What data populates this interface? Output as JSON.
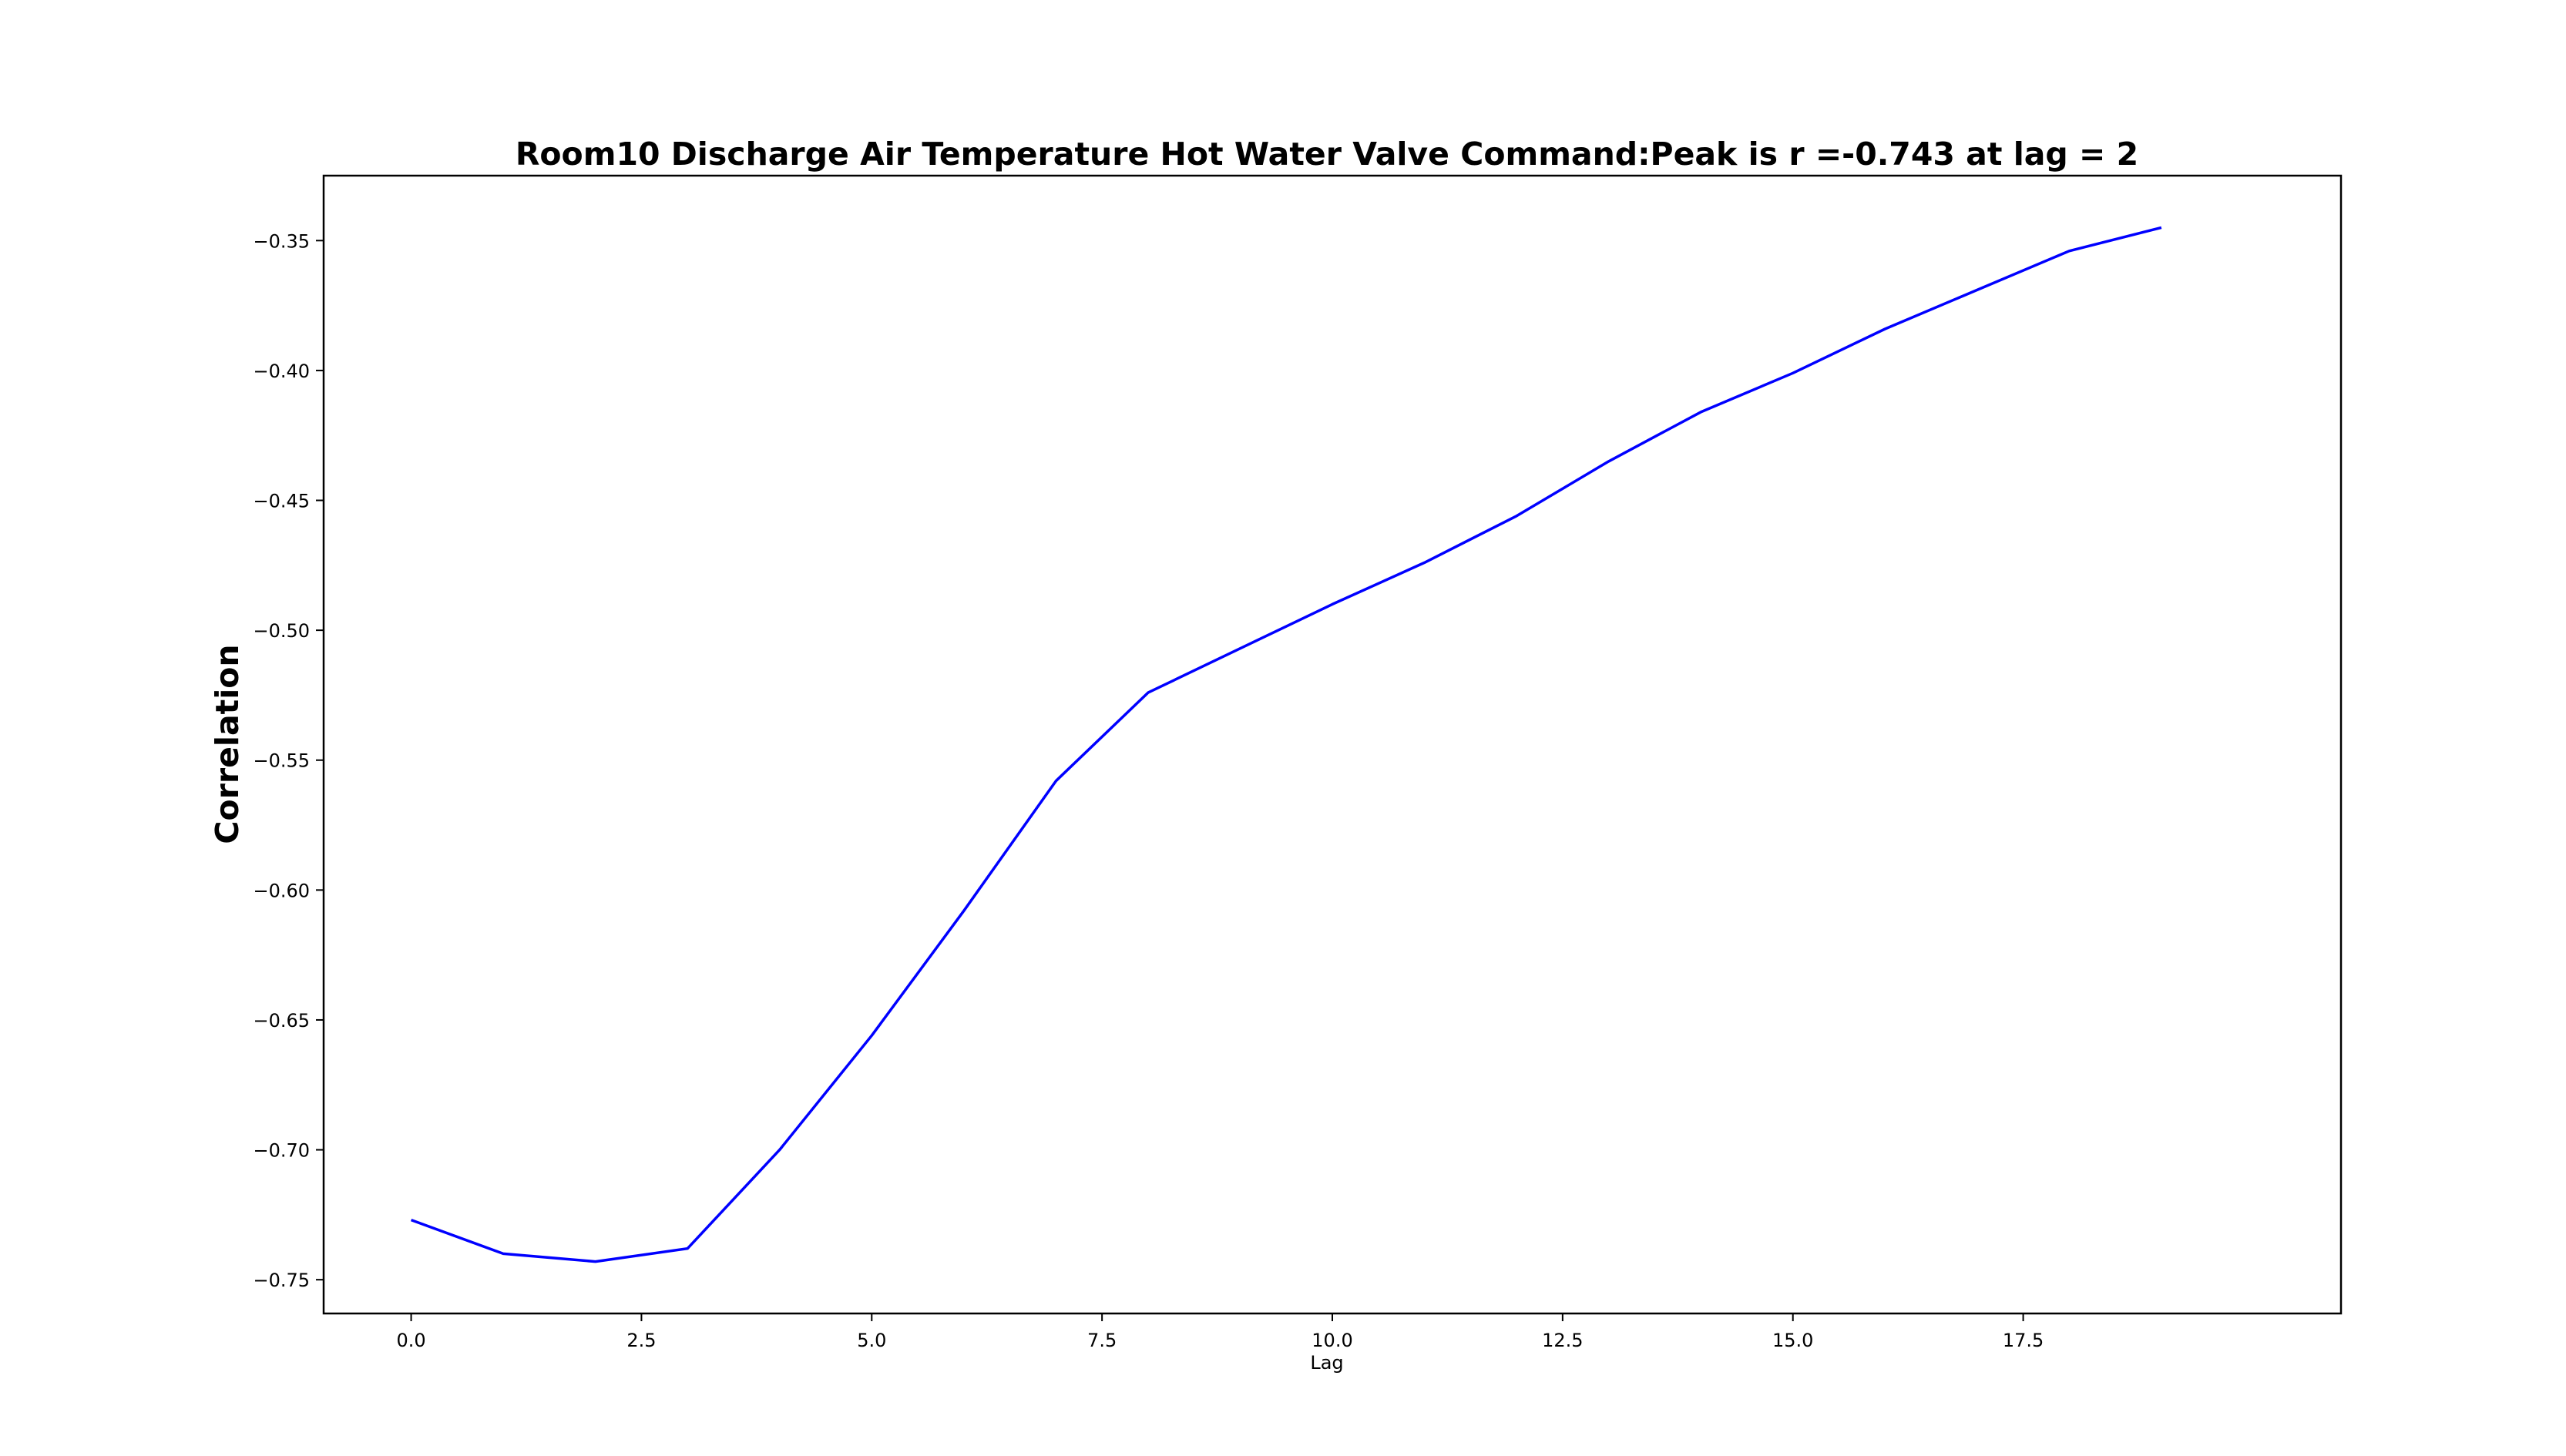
{
  "chart_data": {
    "type": "line",
    "title": "Room10 Discharge Air Temperature Hot Water Valve Command:Peak is r =-0.743 at lag = 2",
    "xlabel": "Lag",
    "ylabel": "Correlation",
    "xlim": [
      -0.95,
      20.95
    ],
    "ylim": [
      -0.763,
      -0.325
    ],
    "xticks": [
      0.0,
      2.5,
      5.0,
      7.5,
      10.0,
      12.5,
      15.0,
      17.5
    ],
    "xtick_labels": [
      "0.0",
      "2.5",
      "5.0",
      "7.5",
      "10.0",
      "12.5",
      "15.0",
      "17.5"
    ],
    "yticks": [
      -0.35,
      -0.4,
      -0.45,
      -0.5,
      -0.55,
      -0.6,
      -0.65,
      -0.7,
      -0.75
    ],
    "ytick_labels": [
      "−0.35",
      "−0.40",
      "−0.45",
      "−0.50",
      "−0.55",
      "−0.60",
      "−0.65",
      "−0.70",
      "−0.75"
    ],
    "grid": false,
    "series": [
      {
        "color": "#0000ff",
        "x": [
          0,
          1,
          2,
          3,
          4,
          5,
          6,
          7,
          8,
          9,
          10,
          11,
          12,
          13,
          14,
          15,
          16,
          17,
          18,
          19
        ],
        "y": [
          -0.727,
          -0.74,
          -0.743,
          -0.738,
          -0.7,
          -0.656,
          -0.608,
          -0.558,
          -0.524,
          -0.507,
          -0.49,
          -0.474,
          -0.456,
          -0.435,
          -0.416,
          -0.401,
          -0.384,
          -0.369,
          -0.354,
          -0.345
        ]
      }
    ]
  }
}
